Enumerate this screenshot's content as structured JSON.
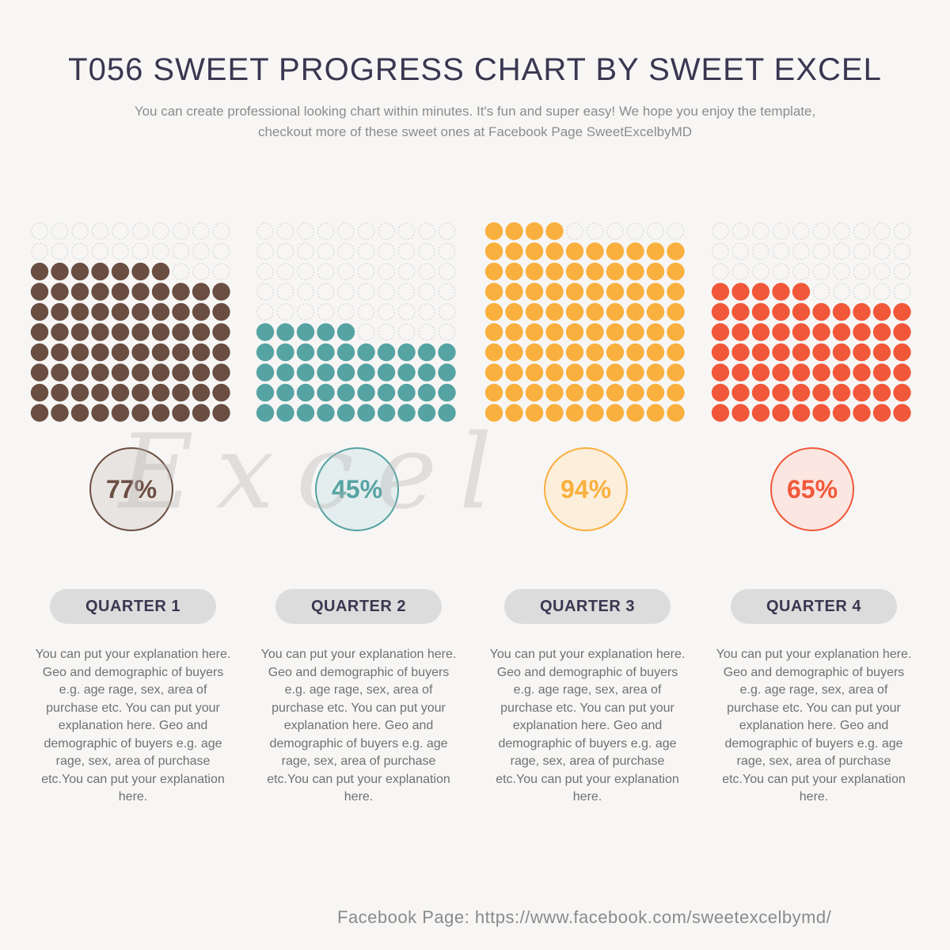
{
  "title": "T056 SWEET PROGRESS CHART BY SWEET EXCEL",
  "subtitle": "You can create professional looking chart within minutes. It's fun and super easy! We hope you enjoy the template, checkout more of these sweet ones at Facebook Page SweetExcelbyMD",
  "watermark": "Excel",
  "chart_data": {
    "type": "waffle",
    "grid": {
      "rows": 10,
      "columns": 10,
      "total": 100
    },
    "categories": [
      "QUARTER 1",
      "QUARTER 2",
      "QUARTER 3",
      "QUARTER 4"
    ],
    "values": [
      77,
      45,
      94,
      65
    ],
    "value_labels": [
      "77%",
      "45%",
      "94%",
      "65%"
    ],
    "colors": [
      "#6b4e42",
      "#56a3a3",
      "#f9b03e",
      "#f1583a"
    ],
    "circle_fills": [
      "#e8e4e1",
      "#e4eeee",
      "#fbeedb",
      "#fbe6e1"
    ],
    "empty_dot_style": "dashed light gray outline",
    "ylim": [
      0,
      100
    ]
  },
  "quarters": [
    {
      "label": "QUARTER 1",
      "pct": "77%",
      "desc": "You can put your explanation here. Geo and demographic of buyers e.g. age rage, sex, area of purchase etc. You can put your explanation here. Geo and demographic of buyers e.g. age rage, sex, area of purchase etc.You can put your explanation here."
    },
    {
      "label": "QUARTER 2",
      "pct": "45%",
      "desc": "You can put your explanation here. Geo and demographic of buyers e.g. age rage, sex, area of purchase etc. You can put your explanation here. Geo and demographic of buyers e.g. age rage, sex, area of purchase etc.You can put your explanation here."
    },
    {
      "label": "QUARTER 3",
      "pct": "94%",
      "desc": "You can put your explanation here. Geo and demographic of buyers e.g. age rage, sex, area of purchase etc. You can put your explanation here. Geo and demographic of buyers e.g. age rage, sex, area of purchase etc.You can put your explanation here."
    },
    {
      "label": "QUARTER 4",
      "pct": "65%",
      "desc": "You can put your explanation here. Geo and demographic of buyers e.g. age rage, sex, area of purchase etc. You can put your explanation here. Geo and demographic of buyers e.g. age rage, sex, area of purchase etc.You can put your explanation here."
    }
  ],
  "footer": "Facebook Page: https://www.facebook.com/sweetexcelbymd/"
}
